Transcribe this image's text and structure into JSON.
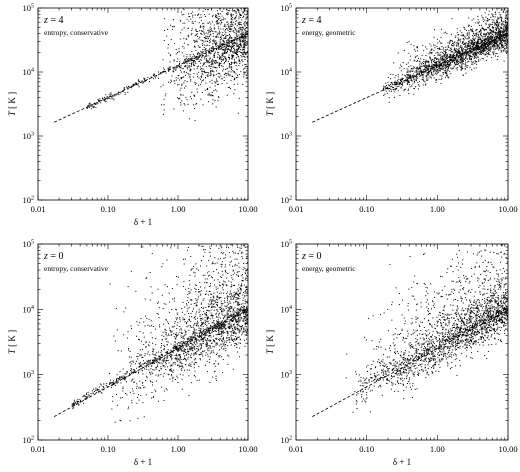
{
  "chart_data": [
    {
      "type": "scatter",
      "panel_label": "z = 4",
      "redshift": "4",
      "subtitle": "entropy, conservative",
      "xlabel": "δ + 1",
      "ylabel": "T [ K ]",
      "xscale": "log",
      "yscale": "log",
      "xlim": [
        0.01,
        10.0
      ],
      "ylim": [
        100,
        100000
      ],
      "x_tick_labels": [
        "0.01",
        "0.10",
        "1.00",
        "10.00"
      ],
      "y_tick_labels": [
        "10^2",
        "10^3",
        "10^4",
        "10^5"
      ],
      "show_xlabel": true,
      "reference_line": {
        "style": "dashed",
        "x_start": 0.017,
        "T_at_x1": 12600,
        "slope": 0.5
      },
      "cloud": {
        "x_min": 0.5,
        "x_max": 10.0,
        "T0": 12600,
        "slope": 0.5,
        "scatter_dex": 0.35,
        "upper_tail": 0.8,
        "count": 1400,
        "ymax_clip": 100000
      },
      "tight": {
        "x_min": 0.05,
        "x_max": 10.0,
        "count": 300,
        "scatter_dex": 0.03
      }
    },
    {
      "type": "scatter",
      "panel_label": "z = 4",
      "redshift": "4",
      "subtitle": "energy, geometric",
      "xlabel": "",
      "ylabel": "T [ K ]",
      "xscale": "log",
      "yscale": "log",
      "xlim": [
        0.01,
        10.0
      ],
      "ylim": [
        100,
        100000
      ],
      "x_tick_labels": [
        "0.01",
        "0.10",
        "1.00",
        "10.00"
      ],
      "y_tick_labels": [
        "10^2",
        "10^3",
        "10^4",
        "10^5"
      ],
      "show_xlabel": false,
      "reference_line": {
        "style": "dashed",
        "x_start": 0.017,
        "T_at_x1": 12600,
        "slope": 0.5
      },
      "cloud": {
        "x_min": 0.17,
        "x_max": 10.0,
        "T0": 13000,
        "slope": 0.5,
        "scatter_dex": 0.12,
        "upper_tail": 0.35,
        "count": 1800,
        "ymax_clip": 100000
      },
      "tight": {
        "x_min": 0.17,
        "x_max": 10.0,
        "count": 400,
        "scatter_dex": 0.04
      }
    },
    {
      "type": "scatter",
      "panel_label": "z = 0",
      "redshift": "0",
      "subtitle": "entropy, conservative",
      "xlabel": "δ + 1",
      "ylabel": "T [ K ]",
      "xscale": "log",
      "yscale": "log",
      "xlim": [
        0.01,
        10.0
      ],
      "ylim": [
        100,
        100000
      ],
      "x_tick_labels": [
        "0.01",
        "0.10",
        "1.00",
        "10.00"
      ],
      "y_tick_labels": [
        "10^2",
        "10^3",
        "10^4",
        "10^5"
      ],
      "show_xlabel": true,
      "reference_line": {
        "style": "dashed",
        "x_start": 0.017,
        "T_at_x1": 2520,
        "slope": 0.59
      },
      "cloud": {
        "x_min": 0.1,
        "x_max": 10.0,
        "T0": 2700,
        "slope": 0.59,
        "scatter_dex": 0.28,
        "upper_tail": 1.3,
        "count": 1900,
        "ymax_clip": 100000
      },
      "tight": {
        "x_min": 0.03,
        "x_max": 10.0,
        "count": 400,
        "scatter_dex": 0.03
      }
    },
    {
      "type": "scatter",
      "panel_label": "z = 0",
      "redshift": "0",
      "subtitle": "energy, geometric",
      "xlabel": "δ + 1",
      "ylabel": "T [ K ]",
      "xscale": "log",
      "yscale": "log",
      "xlim": [
        0.01,
        10.0
      ],
      "ylim": [
        100,
        100000
      ],
      "x_tick_labels": [
        "0.01",
        "0.10",
        "1.00",
        "10.00"
      ],
      "y_tick_labels": [
        "10^2",
        "10^3",
        "10^4",
        "10^5"
      ],
      "show_xlabel": true,
      "reference_line": {
        "style": "dashed",
        "x_start": 0.017,
        "T_at_x1": 2520,
        "slope": 0.59
      },
      "cloud": {
        "x_min": 0.05,
        "x_max": 10.0,
        "T0": 3000,
        "slope": 0.59,
        "scatter_dex": 0.2,
        "upper_tail": 1.1,
        "count": 2000,
        "ymax_clip": 100000
      },
      "tight": {
        "x_min": 0.08,
        "x_max": 10.0,
        "count": 200,
        "scatter_dex": 0.08
      }
    }
  ]
}
